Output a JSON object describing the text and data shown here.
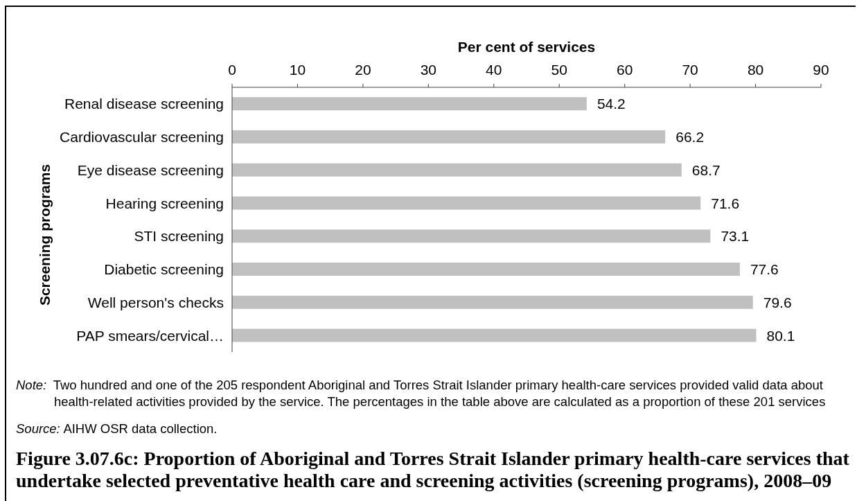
{
  "chart_data": {
    "type": "bar",
    "orientation": "horizontal",
    "title": "Figure 3.07.6c: Proportion of Aboriginal and Torres Strait Islander primary health-care services that undertake selected preventative health care and screening activities (screening programs), 2008–09",
    "xlabel": "Per cent of services",
    "ylabel": "Screening programs",
    "categories": [
      "Renal disease screening",
      "Cardiovascular screening",
      "Eye disease screening",
      "Hearing screening",
      "STI screening",
      "Diabetic screening",
      "Well person's checks",
      "PAP smears/cervical…"
    ],
    "values": [
      54.2,
      66.2,
      68.7,
      71.6,
      73.1,
      77.6,
      79.6,
      80.1
    ],
    "color": "#c0c0c0",
    "xlim": [
      0,
      90
    ],
    "xticks": [
      0,
      10,
      20,
      30,
      40,
      50,
      60,
      70,
      80,
      90
    ],
    "data_labels": true,
    "annotations": [
      "Note: Two hundred and one of the 205 respondent Aboriginal and Torres Strait Islander primary health-care services provided valid data about health-related activities provided by the service. The percentages in the table above are calculated as a proportion of these 201 services",
      "Source: AIHW OSR data collection."
    ]
  }
}
